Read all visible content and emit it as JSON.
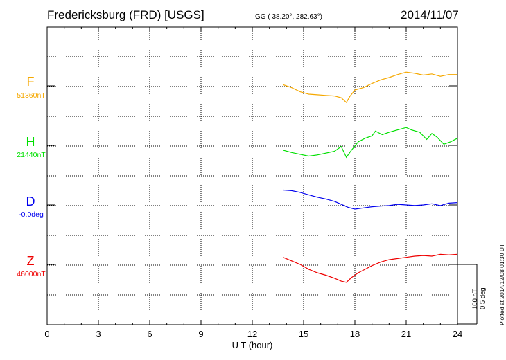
{
  "header": {
    "station": "Fredericksburg (FRD)  [USGS]",
    "coords": "GG ( 38.20°, 282.63°)",
    "date": "2014/11/07"
  },
  "side_note": "Plotted at 2014/12/08 01:30 UT",
  "scale": {
    "nt": "100 nT",
    "deg": "0.5 deg"
  },
  "colors": {
    "F": "#f5a800",
    "H": "#00e000",
    "D": "#0000ee",
    "Z": "#ee0000"
  },
  "chart_data": {
    "type": "line",
    "title": "Fredericksburg (FRD)  [USGS]",
    "xlabel": "U T (hour)",
    "xlim": [
      0,
      24
    ],
    "xticks": [
      "0",
      "3",
      "6",
      "9",
      "12",
      "15",
      "18",
      "21",
      "24"
    ],
    "grid": true,
    "components": [
      {
        "name": "F",
        "baseline": "51360nT",
        "color": "#f5a800",
        "x": [
          13.8,
          14.3,
          14.8,
          15.3,
          15.8,
          16.3,
          16.8,
          17.2,
          17.5,
          17.7,
          18.0,
          18.5,
          19.0,
          19.5,
          20.0,
          20.5,
          21.0,
          21.5,
          22.0,
          22.5,
          23.0,
          23.5,
          24.0
        ],
        "y": [
          2,
          -3,
          -10,
          -14,
          -15,
          -16,
          -17,
          -20,
          -28,
          -18,
          -7,
          -3,
          4,
          10,
          14,
          19,
          23,
          21,
          18,
          20,
          16,
          19,
          19
        ]
      },
      {
        "name": "H",
        "baseline": "21440nT",
        "color": "#00e000",
        "x": [
          13.8,
          14.3,
          14.8,
          15.3,
          15.8,
          16.3,
          16.8,
          17.2,
          17.5,
          17.8,
          18.2,
          18.6,
          19.0,
          19.2,
          19.6,
          20.0,
          20.5,
          21.0,
          21.3,
          21.8,
          22.2,
          22.5,
          22.8,
          23.2,
          23.6,
          24.0
        ],
        "y": [
          -8,
          -12,
          -15,
          -18,
          -16,
          -13,
          -10,
          -2,
          -20,
          -8,
          6,
          12,
          16,
          24,
          18,
          22,
          26,
          30,
          26,
          22,
          10,
          20,
          14,
          2,
          6,
          12
        ]
      },
      {
        "name": "D",
        "baseline": "-0.0deg",
        "color": "#0000ee",
        "x": [
          13.8,
          14.3,
          14.8,
          15.3,
          15.8,
          16.3,
          16.8,
          17.2,
          17.6,
          18.0,
          18.5,
          19.0,
          19.5,
          20.0,
          20.5,
          21.0,
          21.5,
          22.0,
          22.5,
          23.0,
          23.5,
          24.0
        ],
        "y": [
          0.125,
          0.12,
          0.105,
          0.085,
          0.065,
          0.05,
          0.03,
          0.005,
          -0.02,
          -0.035,
          -0.025,
          -0.015,
          -0.01,
          -0.005,
          0.005,
          0.0,
          -0.005,
          0.0,
          0.01,
          -0.005,
          0.015,
          0.02
        ]
      },
      {
        "name": "Z",
        "baseline": "46000nT",
        "color": "#ee0000",
        "x": [
          13.8,
          14.3,
          14.8,
          15.3,
          15.8,
          16.3,
          16.8,
          17.2,
          17.5,
          17.8,
          18.2,
          18.6,
          19.0,
          19.5,
          20.0,
          20.5,
          21.0,
          21.5,
          22.0,
          22.5,
          23.0,
          23.5,
          24.0
        ],
        "y": [
          12,
          6,
          0,
          -8,
          -14,
          -18,
          -23,
          -28,
          -30,
          -22,
          -14,
          -8,
          -2,
          4,
          8,
          10,
          12,
          14,
          15,
          14,
          17,
          16,
          17
        ]
      }
    ]
  }
}
